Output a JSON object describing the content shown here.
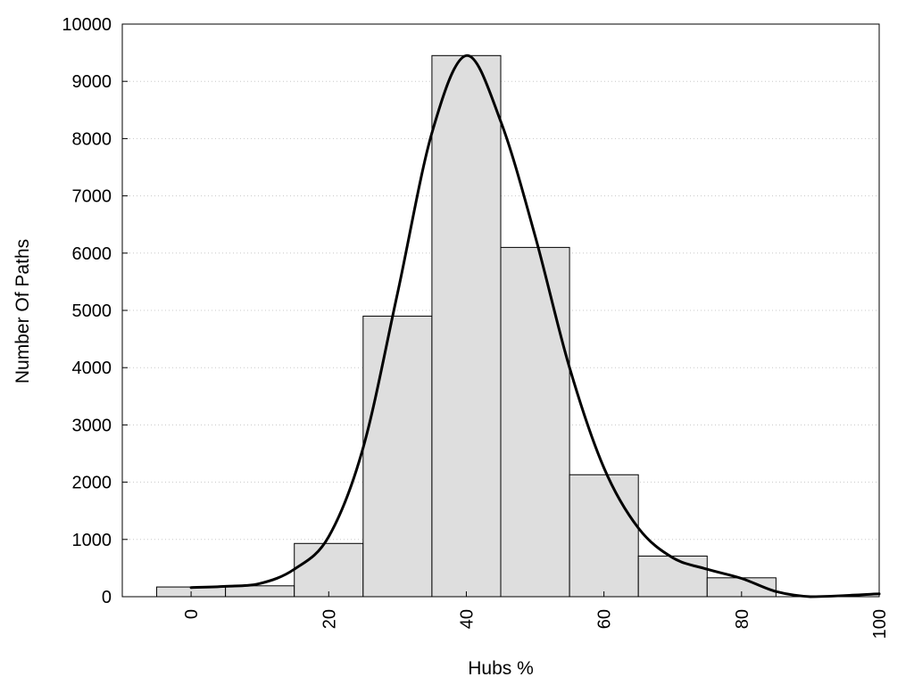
{
  "chart_data": {
    "type": "bar",
    "xlabel": "Hubs %",
    "ylabel": "Number Of Paths",
    "xlim": [
      -10,
      100
    ],
    "ylim": [
      0,
      10000
    ],
    "grid": true,
    "x_ticks": [
      0,
      20,
      40,
      60,
      80,
      100
    ],
    "y_ticks": [
      0,
      1000,
      2000,
      3000,
      4000,
      5000,
      6000,
      7000,
      8000,
      9000,
      10000
    ],
    "bin_width": 10,
    "bins": [
      0,
      10,
      20,
      30,
      40,
      50,
      60,
      70,
      80,
      90
    ],
    "values": [
      170,
      190,
      930,
      4900,
      9450,
      6100,
      2130,
      710,
      330,
      0
    ],
    "curve": {
      "x": [
        0,
        5,
        10,
        15,
        20,
        25,
        30,
        35,
        40,
        45,
        50,
        55,
        60,
        65,
        70,
        75,
        80,
        85,
        90,
        95,
        100
      ],
      "y": [
        160,
        180,
        230,
        480,
        1050,
        2600,
        5300,
        8100,
        9450,
        8300,
        6300,
        4000,
        2250,
        1200,
        680,
        480,
        320,
        90,
        0,
        20,
        50
      ]
    },
    "colors": {
      "bar_fill": "#dedede",
      "bar_edge": "#000000",
      "curve": "#000000"
    }
  }
}
